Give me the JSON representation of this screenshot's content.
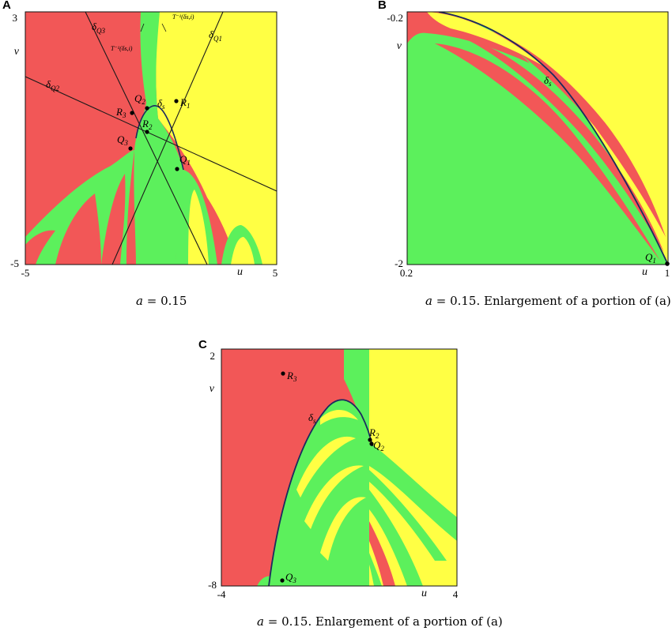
{
  "colors": {
    "red": "#F25757",
    "green": "#5CF05C",
    "yellow": "#FFFF44",
    "line": "#1a1a1a",
    "curve": "#1b2b5e"
  },
  "panels": [
    {
      "letter": "A",
      "caption_var": "a",
      "caption_value": "= 0.15",
      "caption_rest": "",
      "x_min": "-5",
      "x_max": "5",
      "x_label": "u",
      "y_min": "-5",
      "y_max": "3",
      "y_label": "v",
      "labels": {
        "dQ3": "δ",
        "dQ3_sub": "Q3",
        "dQ1": "δ",
        "dQ1_sub": "Q1",
        "dQ2": "δ",
        "dQ2_sub": "Q2",
        "T1": "T⁻¹(δs,i)",
        "T2": "T⁻¹(δs,i)",
        "Q2": "Q",
        "Q2_sub": "2",
        "ds": "δ",
        "ds_sub": "s",
        "R1": "R",
        "R1_sub": "1",
        "R3": "R",
        "R3_sub": "3",
        "R2": "R",
        "R2_sub": "2",
        "Q3": "Q",
        "Q3_sub": "3",
        "Q1": "Q",
        "Q1_sub": "1"
      }
    },
    {
      "letter": "B",
      "caption_var": "a",
      "caption_value": "= 0.15.",
      "caption_rest": "Enlargement of a portion of (a)",
      "x_min": "0.2",
      "x_max": "1",
      "x_label": "u",
      "y_min": "-2",
      "y_max": "-0.2",
      "y_label": "v",
      "labels": {
        "ds": "δ",
        "ds_sub": "s",
        "Q1": "Q",
        "Q1_sub": "1"
      }
    },
    {
      "letter": "C",
      "caption_var": "a",
      "caption_value": "= 0.15.",
      "caption_rest": "Enlargement of a portion of (a)",
      "x_min": "-4",
      "x_max": "4",
      "x_label": "u",
      "y_min": "-8",
      "y_max": "2",
      "y_label": "v",
      "labels": {
        "R3": "R",
        "R3_sub": "3",
        "ds": "δ",
        "ds_sub": "s",
        "R2": "R",
        "R2_sub": "2",
        "Q2": "Q",
        "Q2_sub": "2",
        "Q3": "Q",
        "Q3_sub": "3"
      }
    }
  ]
}
